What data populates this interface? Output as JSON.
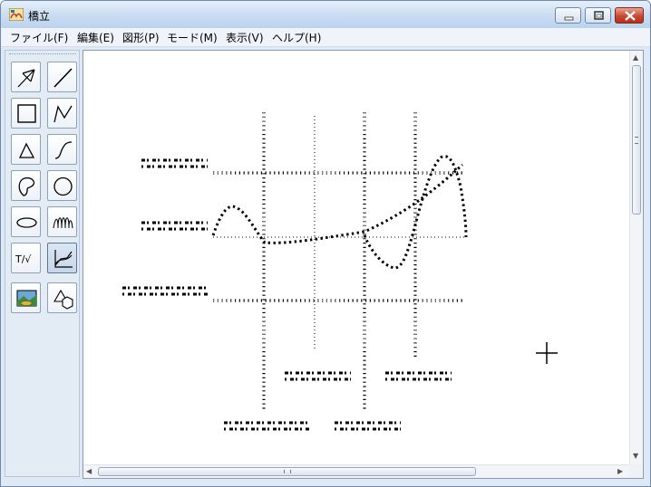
{
  "window": {
    "title": "橋立",
    "buttons": {
      "minimize": "minimize-icon",
      "maximize": "maximize-icon",
      "close": "close-icon"
    }
  },
  "menu": {
    "items": [
      {
        "label": "ファイル(F)"
      },
      {
        "label": "編集(E)"
      },
      {
        "label": "図形(P)"
      },
      {
        "label": "モード(M)"
      },
      {
        "label": "表示(V)"
      },
      {
        "label": "ヘルプ(H)"
      }
    ]
  },
  "tools": [
    {
      "icon": "select-arrow-icon"
    },
    {
      "icon": "line-icon"
    },
    {
      "icon": "rectangle-icon"
    },
    {
      "icon": "polyline-icon"
    },
    {
      "icon": "triangle-icon"
    },
    {
      "icon": "curve-icon"
    },
    {
      "icon": "freeform-shape-icon"
    },
    {
      "icon": "circle-icon"
    },
    {
      "icon": "ellipse-icon"
    },
    {
      "icon": "spring-icon"
    },
    {
      "icon": "text-formula-icon",
      "label": "T/√"
    },
    {
      "icon": "graph-icon",
      "active": true
    },
    {
      "icon": "image-icon"
    },
    {
      "icon": "shapes-group-icon"
    }
  ],
  "colors": {
    "titlebar": "#c9dcf1",
    "close_button": "#c9482f",
    "canvas_background": "#ffffff",
    "drawing": "#000000"
  },
  "scrollbars": {
    "vertical": {
      "arrows": [
        "▲",
        "▼"
      ]
    },
    "horizontal": {
      "arrows": [
        "◀",
        "▶"
      ]
    }
  }
}
